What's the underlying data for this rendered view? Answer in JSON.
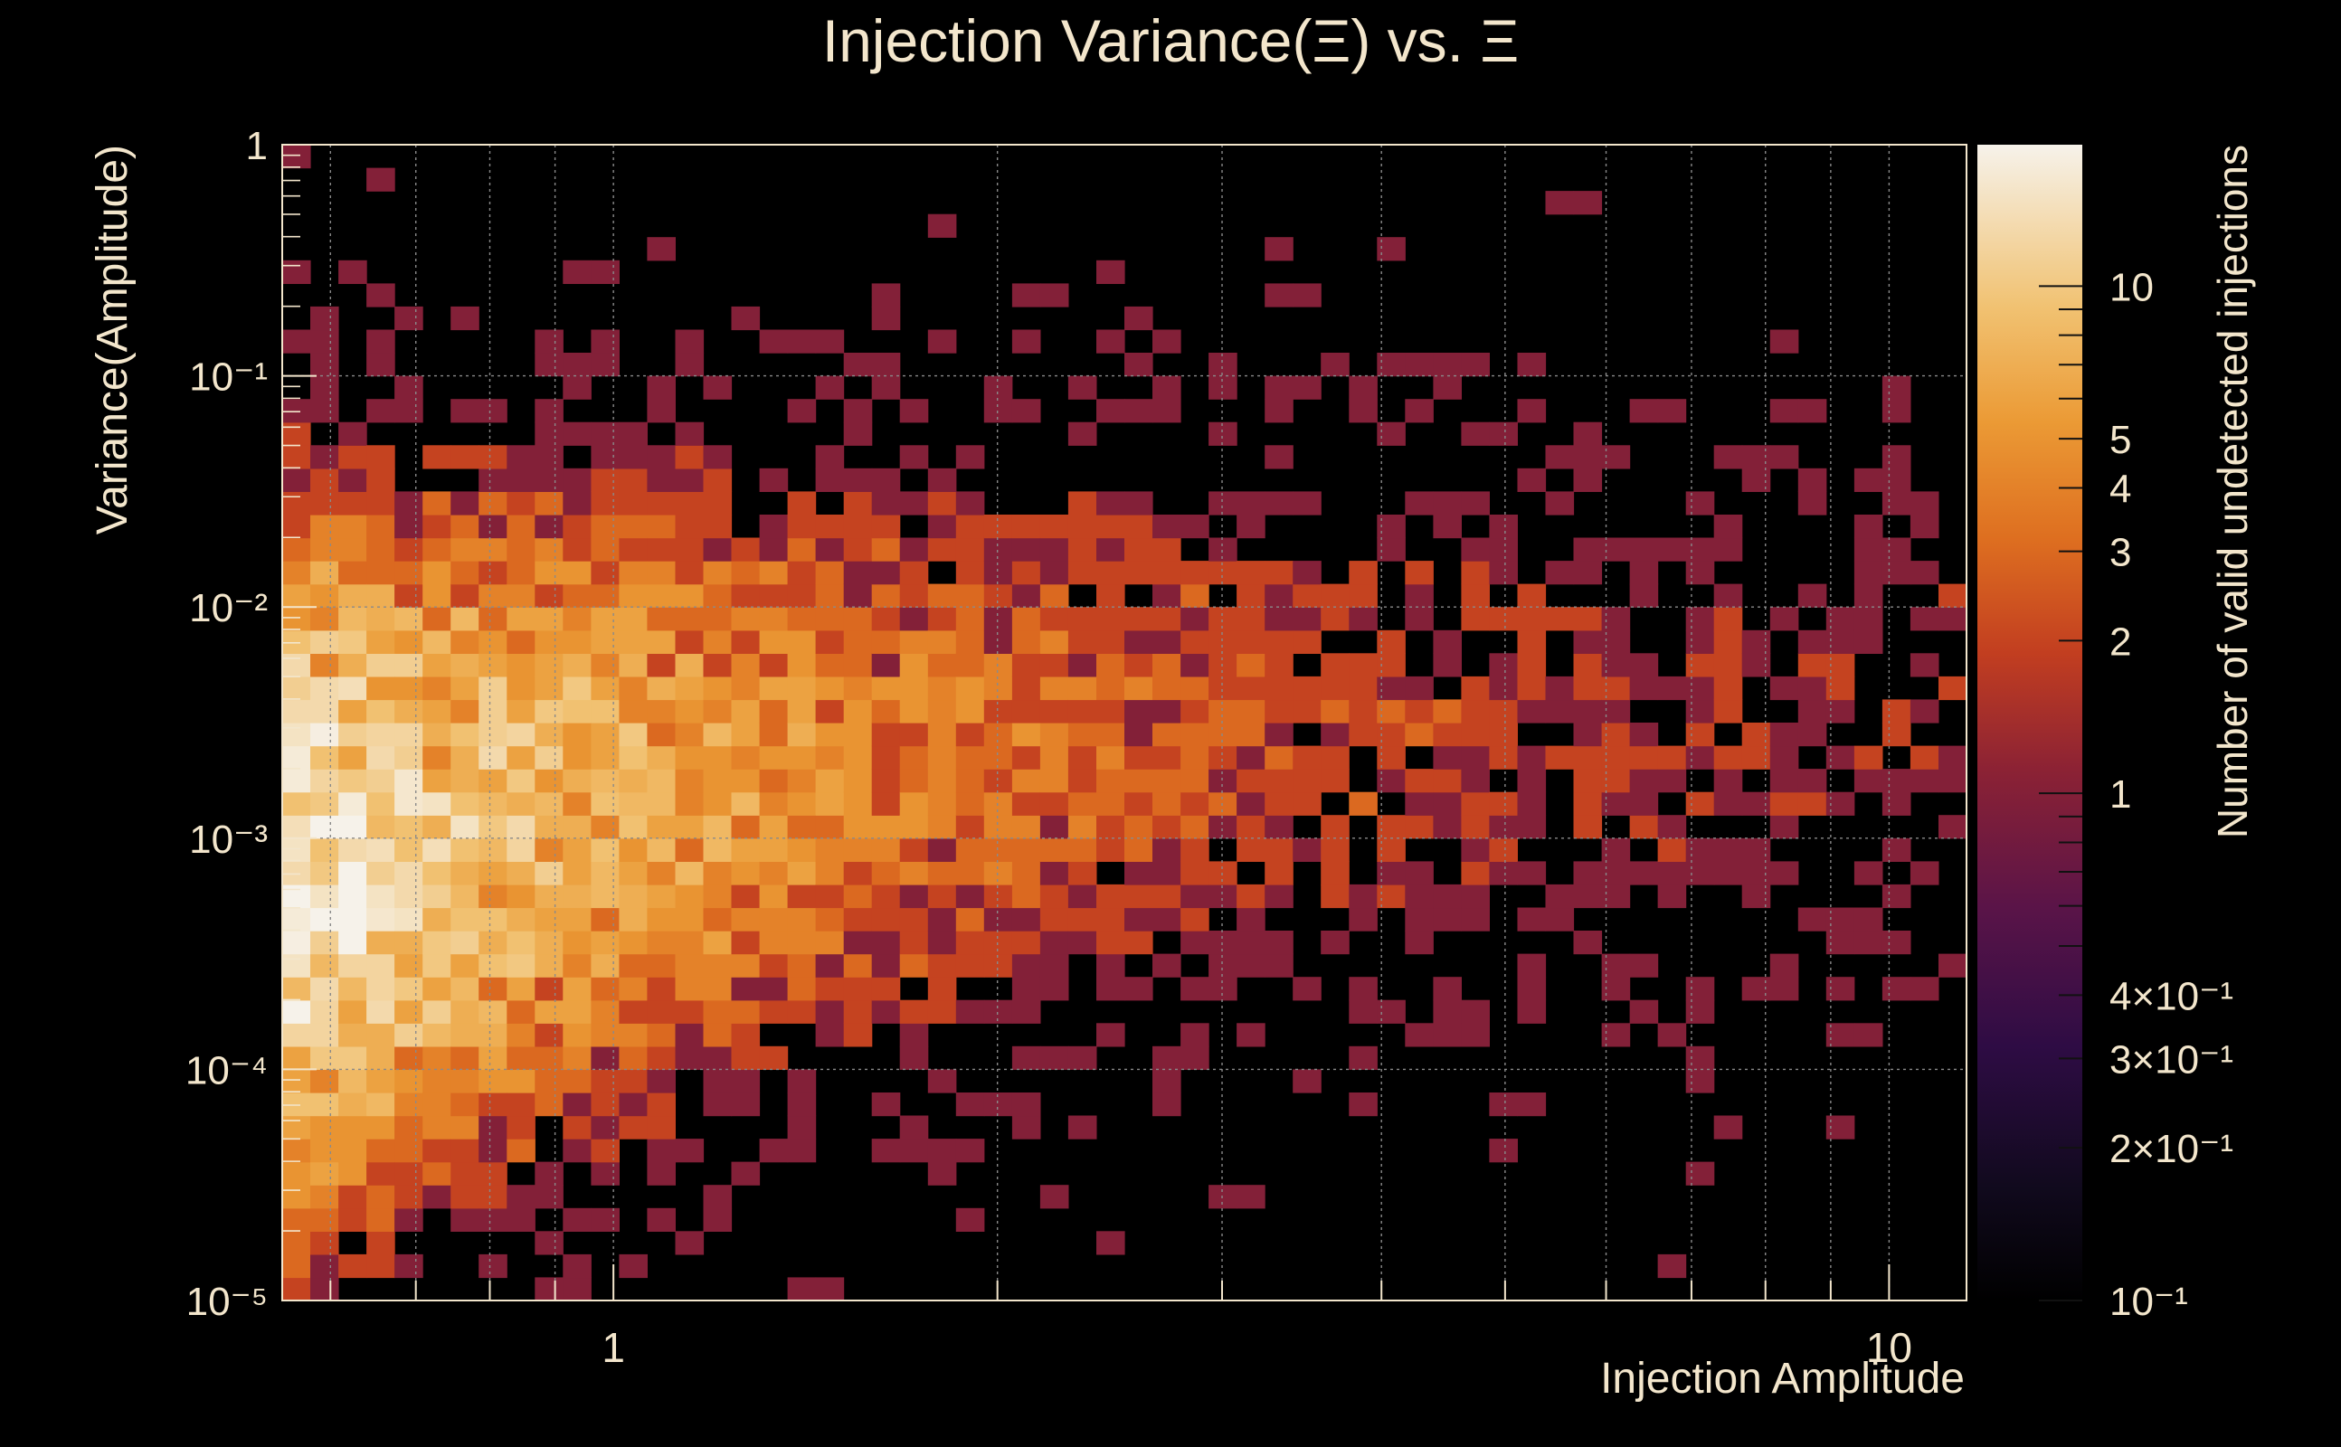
{
  "chart_data": {
    "type": "heatmap",
    "title": "Injection Variance(Ξ) vs. Ξ",
    "xlabel": "Injection Amplitude",
    "ylabel": "Variance(Amplitude)",
    "zlabel": "Number of valid undetected injections",
    "x_scale": "log",
    "y_scale": "log",
    "z_scale": "log",
    "xlim": [
      0.55,
      11.5
    ],
    "ylim": [
      1e-05,
      1
    ],
    "zlim": [
      0.1,
      19
    ],
    "x_bins": 60,
    "y_bins": 50,
    "grid": true,
    "colors": {
      "background": "#000000",
      "text": "#f3e6cc",
      "grid": "#9a9a9a",
      "colormap": [
        "#000000",
        "#1a0d2e",
        "#3d0d4a",
        "#6e1a4e",
        "#a8322f",
        "#d4531b",
        "#e8862a",
        "#f0b457",
        "#f5d9a0",
        "#f6f1e6"
      ]
    },
    "x_tick_labels": [
      {
        "value": 1,
        "label": "1"
      },
      {
        "value": 10,
        "label": "10"
      }
    ],
    "y_tick_labels": [
      {
        "value": 1,
        "label": "1"
      },
      {
        "value": 0.1,
        "label": "10⁻¹"
      },
      {
        "value": 0.01,
        "label": "10⁻²"
      },
      {
        "value": 0.001,
        "label": "10⁻³"
      },
      {
        "value": 0.0001,
        "label": "10⁻⁴"
      },
      {
        "value": 1e-05,
        "label": "10⁻⁵"
      }
    ],
    "z_tick_labels": [
      {
        "value": 10,
        "label": "10"
      },
      {
        "value": 5,
        "label": "5"
      },
      {
        "value": 4,
        "label": "4"
      },
      {
        "value": 3,
        "label": "3"
      },
      {
        "value": 2,
        "label": "2"
      },
      {
        "value": 1,
        "label": "1"
      },
      {
        "value": 0.4,
        "label": "4×10⁻¹"
      },
      {
        "value": 0.3,
        "label": "3×10⁻¹"
      },
      {
        "value": 0.2,
        "label": "2×10⁻¹"
      },
      {
        "value": 0.1,
        "label": "10⁻¹"
      }
    ],
    "density_model": {
      "description": "approximate 2D count density read from the figure",
      "peak_count": 17,
      "ridge": [
        {
          "x": 0.56,
          "y_center": 0.0007,
          "spread_decades": 1.35,
          "peak": 17
        },
        {
          "x": 0.7,
          "y_center": 0.0009,
          "spread_decades": 1.3,
          "peak": 11
        },
        {
          "x": 1.0,
          "y_center": 0.0015,
          "spread_decades": 1.25,
          "peak": 7
        },
        {
          "x": 1.5,
          "y_center": 0.002,
          "spread_decades": 1.2,
          "peak": 4
        },
        {
          "x": 2.5,
          "y_center": 0.003,
          "spread_decades": 1.15,
          "peak": 2.6
        },
        {
          "x": 4.0,
          "y_center": 0.003,
          "spread_decades": 1.15,
          "peak": 1.8
        },
        {
          "x": 7.0,
          "y_center": 0.003,
          "spread_decades": 1.1,
          "peak": 1.4
        },
        {
          "x": 10.5,
          "y_center": 0.005,
          "spread_decades": 0.9,
          "peak": 1.2
        }
      ],
      "min_count": 1
    }
  }
}
